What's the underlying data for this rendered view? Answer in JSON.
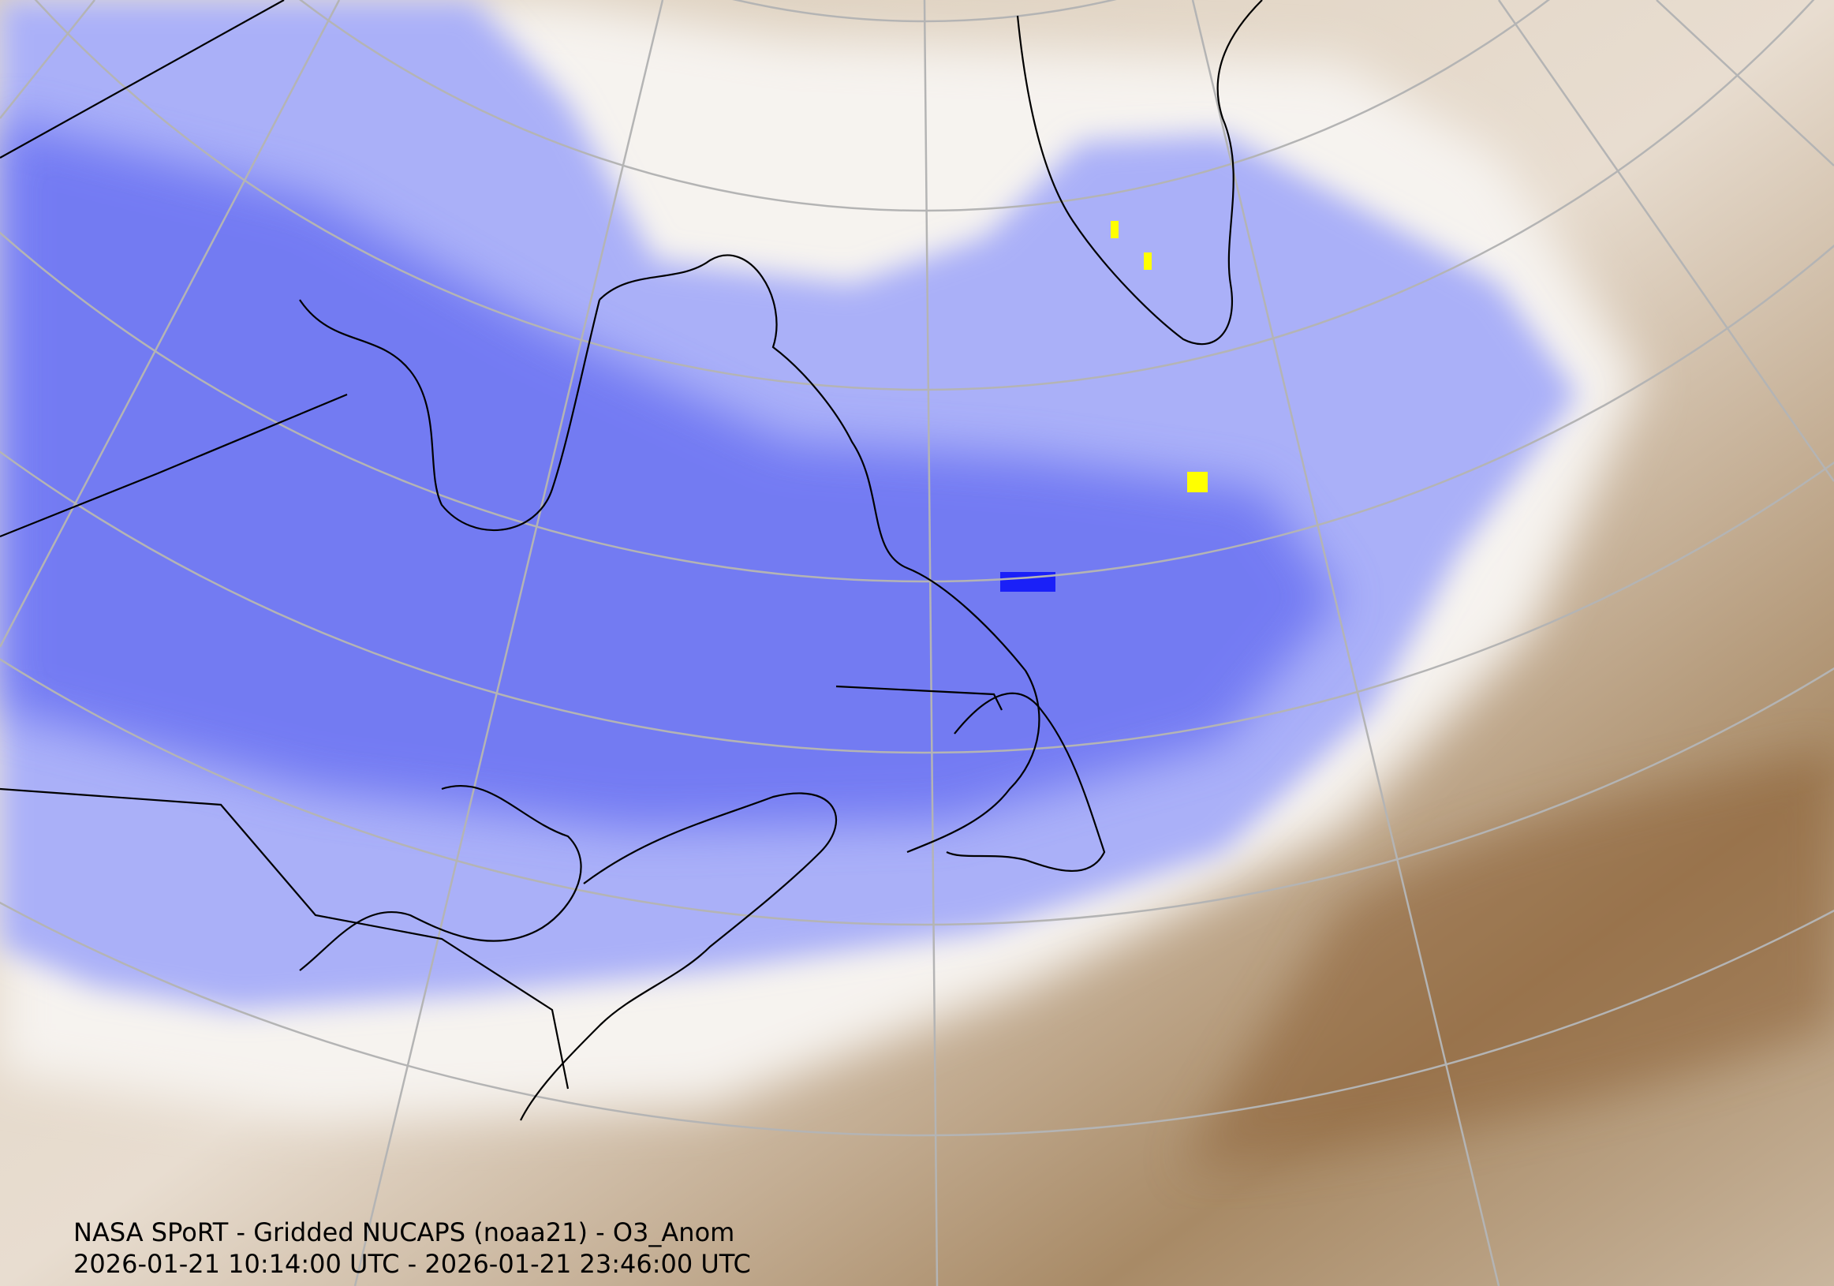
{
  "map": {
    "title": "NASA SPoRT - Gridded NUCAPS (noaa21) - O3_Anom",
    "time_range": "2026-01-21 10:14:00 UTC - 2026-01-21 23:46:00 UTC"
  }
}
